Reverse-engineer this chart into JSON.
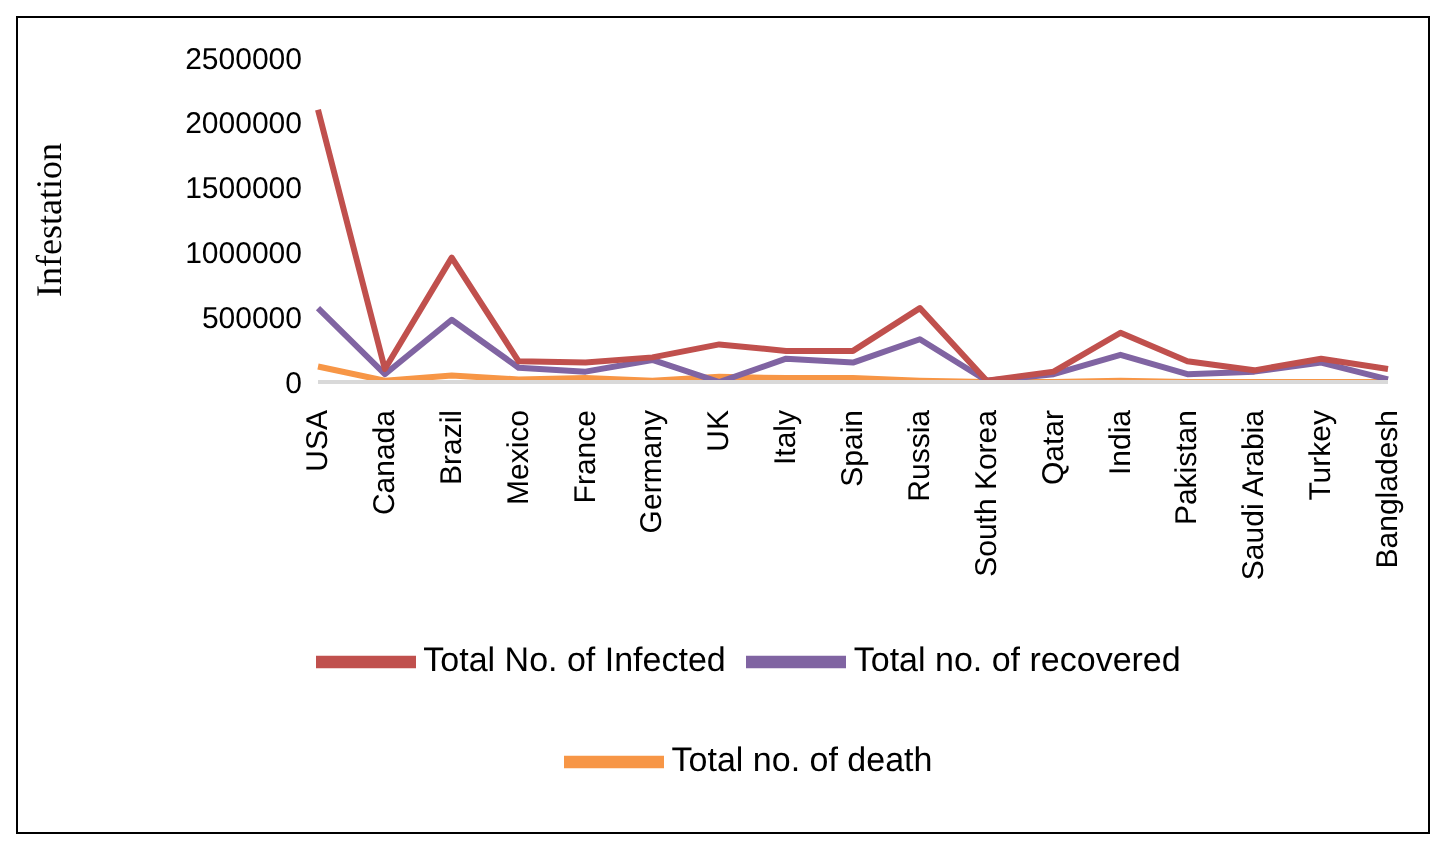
{
  "chart_data": {
    "type": "line",
    "ylabel": "Infestation",
    "categories": [
      "USA",
      "Canada",
      "Brazil",
      "Mexico",
      "France",
      "Germany",
      "UK",
      "Italy",
      "Spain",
      "Russia",
      "South Korea",
      "Qatar",
      "India",
      "Pakistan",
      "Saudi Arabia",
      "Turkey",
      "Bangladesh"
    ],
    "series": [
      {
        "name": "Total No. of Infected",
        "color": "#c0504d",
        "values": [
          2100000,
          100000,
          960000,
          160000,
          150000,
          190000,
          290000,
          240000,
          240000,
          570000,
          10000,
          80000,
          380000,
          160000,
          90000,
          180000,
          100000
        ]
      },
      {
        "name": "Total no. of recovered",
        "color": "#8064a2",
        "values": [
          570000,
          60000,
          480000,
          110000,
          80000,
          170000,
          0,
          180000,
          150000,
          330000,
          10000,
          60000,
          210000,
          60000,
          80000,
          150000,
          20000
        ]
      },
      {
        "name": "Total no. of death",
        "color": "#f79646",
        "values": [
          120000,
          10000,
          50000,
          20000,
          30000,
          10000,
          40000,
          30000,
          30000,
          10000,
          0,
          0,
          10000,
          0,
          0,
          0,
          0
        ]
      }
    ],
    "ylim": [
      0,
      2500000
    ],
    "yticks": [
      0,
      500000,
      1000000,
      1500000,
      2000000,
      2500000
    ],
    "legend": "bottom",
    "marker": "none",
    "line_style": "solid"
  }
}
